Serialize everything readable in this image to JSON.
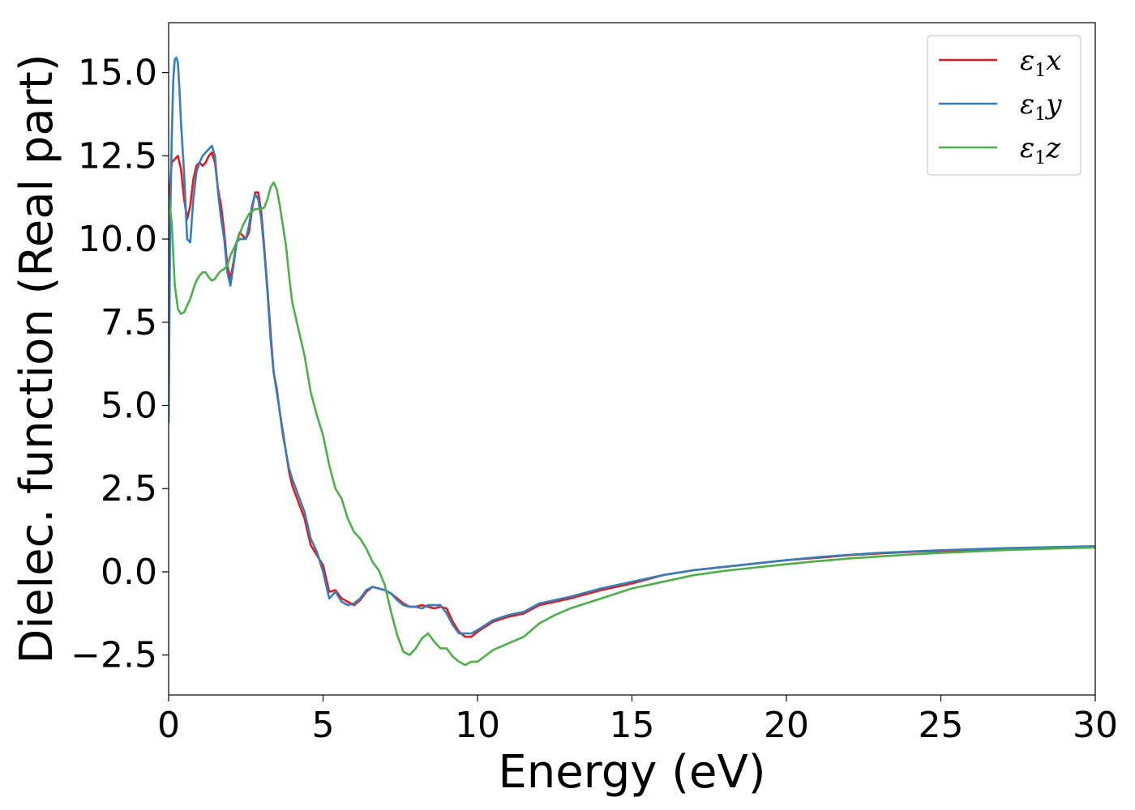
{
  "chart_data": {
    "type": "line",
    "xlabel": "Energy (eV)",
    "ylabel": "Dielec. function (Real part)",
    "xlim": [
      0,
      30
    ],
    "ylim": [
      -3.7,
      16.5
    ],
    "xticks": [
      0,
      5,
      10,
      15,
      20,
      25,
      30
    ],
    "xtick_labels": [
      "0",
      "5",
      "10",
      "15",
      "20",
      "25",
      "30"
    ],
    "yticks": [
      -2.5,
      0.0,
      2.5,
      5.0,
      7.5,
      10.0,
      12.5,
      15.0
    ],
    "ytick_labels": [
      "−2.5",
      "0.0",
      "2.5",
      "5.0",
      "7.5",
      "10.0",
      "12.5",
      "15.0"
    ],
    "grid": false,
    "legend_position": "top-right",
    "series": [
      {
        "name": "ε1x",
        "legend_main": "ε",
        "legend_sub": "1",
        "legend_var": "x",
        "color": "#e41a1c",
        "x": [
          0,
          0.1,
          0.2,
          0.3,
          0.4,
          0.5,
          0.6,
          0.7,
          0.8,
          0.9,
          1.0,
          1.1,
          1.2,
          1.3,
          1.4,
          1.5,
          1.6,
          1.7,
          1.8,
          1.9,
          2.0,
          2.1,
          2.2,
          2.3,
          2.4,
          2.5,
          2.6,
          2.7,
          2.8,
          2.9,
          3.0,
          3.1,
          3.2,
          3.3,
          3.4,
          3.5,
          3.6,
          3.7,
          3.8,
          3.9,
          4.0,
          4.2,
          4.4,
          4.6,
          4.8,
          5.0,
          5.2,
          5.4,
          5.6,
          5.8,
          6.0,
          6.2,
          6.4,
          6.6,
          6.8,
          7.0,
          7.2,
          7.4,
          7.6,
          7.8,
          8.0,
          8.2,
          8.4,
          8.6,
          8.8,
          9.0,
          9.2,
          9.4,
          9.6,
          9.8,
          10.0,
          10.5,
          11.0,
          11.5,
          12.0,
          12.5,
          13.0,
          14.0,
          15.0,
          16.0,
          17.0,
          18.0,
          19.0,
          20.0,
          21.0,
          22.0,
          23.0,
          24.0,
          25.0,
          26.0,
          27.0,
          28.0,
          29.0,
          30.0
        ],
        "y": [
          11.0,
          12.3,
          12.4,
          12.5,
          12.1,
          11.2,
          10.6,
          11.0,
          11.8,
          12.2,
          12.3,
          12.2,
          12.3,
          12.5,
          12.6,
          12.3,
          11.5,
          11.0,
          10.2,
          9.2,
          8.8,
          9.3,
          9.9,
          10.2,
          10.1,
          10.0,
          10.2,
          10.9,
          11.4,
          11.4,
          10.8,
          9.7,
          8.5,
          7.2,
          6.0,
          5.5,
          4.8,
          4.2,
          3.6,
          3.0,
          2.6,
          2.1,
          1.6,
          0.8,
          0.5,
          0.2,
          -0.6,
          -0.55,
          -0.8,
          -0.9,
          -1.0,
          -0.85,
          -0.6,
          -0.45,
          -0.5,
          -0.55,
          -0.65,
          -0.8,
          -0.95,
          -1.05,
          -1.05,
          -1.0,
          -1.05,
          -1.1,
          -1.05,
          -1.1,
          -1.5,
          -1.8,
          -1.95,
          -1.95,
          -1.8,
          -1.5,
          -1.35,
          -1.25,
          -1.0,
          -0.9,
          -0.8,
          -0.55,
          -0.35,
          -0.1,
          0.05,
          0.15,
          0.25,
          0.35,
          0.42,
          0.5,
          0.55,
          0.6,
          0.63,
          0.66,
          0.69,
          0.71,
          0.73,
          0.75
        ]
      },
      {
        "name": "ε1y",
        "legend_main": "ε",
        "legend_sub": "1",
        "legend_var": "y",
        "color": "#377eb8",
        "x": [
          0,
          0.05,
          0.1,
          0.15,
          0.2,
          0.25,
          0.3,
          0.35,
          0.4,
          0.5,
          0.6,
          0.7,
          0.8,
          0.9,
          1.0,
          1.1,
          1.2,
          1.3,
          1.4,
          1.5,
          1.6,
          1.7,
          1.8,
          1.9,
          2.0,
          2.1,
          2.2,
          2.3,
          2.4,
          2.5,
          2.6,
          2.7,
          2.8,
          2.9,
          3.0,
          3.1,
          3.2,
          3.3,
          3.4,
          3.5,
          3.6,
          3.7,
          3.8,
          3.9,
          4.0,
          4.2,
          4.4,
          4.6,
          4.8,
          5.0,
          5.2,
          5.4,
          5.6,
          5.8,
          6.0,
          6.2,
          6.4,
          6.6,
          6.8,
          7.0,
          7.2,
          7.4,
          7.6,
          7.8,
          8.0,
          8.2,
          8.4,
          8.6,
          8.8,
          9.0,
          9.2,
          9.4,
          9.6,
          9.8,
          10.0,
          10.5,
          11.0,
          11.5,
          12.0,
          12.5,
          13.0,
          14.0,
          15.0,
          16.0,
          17.0,
          18.0,
          19.0,
          20.0,
          21.0,
          22.0,
          23.0,
          24.0,
          25.0,
          26.0,
          27.0,
          28.0,
          29.0,
          30.0
        ],
        "y": [
          4.5,
          10.5,
          13.0,
          14.8,
          15.4,
          15.45,
          15.3,
          14.5,
          13.5,
          12.0,
          10.0,
          9.9,
          11.2,
          12.0,
          12.3,
          12.5,
          12.6,
          12.7,
          12.8,
          12.5,
          11.4,
          10.6,
          10.0,
          9.0,
          8.6,
          9.2,
          9.9,
          10.0,
          10.0,
          10.0,
          10.4,
          11.0,
          11.35,
          11.2,
          10.6,
          9.6,
          8.4,
          7.0,
          6.0,
          5.4,
          4.8,
          4.1,
          3.6,
          3.1,
          2.8,
          2.3,
          1.8,
          1.0,
          0.6,
          0.0,
          -0.8,
          -0.6,
          -0.9,
          -1.0,
          -0.95,
          -0.8,
          -0.55,
          -0.45,
          -0.5,
          -0.55,
          -0.65,
          -0.85,
          -1.0,
          -1.05,
          -1.05,
          -1.1,
          -1.0,
          -1.0,
          -1.0,
          -1.25,
          -1.6,
          -1.85,
          -1.85,
          -1.85,
          -1.75,
          -1.45,
          -1.3,
          -1.2,
          -0.95,
          -0.85,
          -0.75,
          -0.5,
          -0.3,
          -0.1,
          0.05,
          0.15,
          0.25,
          0.35,
          0.44,
          0.51,
          0.57,
          0.61,
          0.65,
          0.68,
          0.71,
          0.73,
          0.75,
          0.77
        ]
      },
      {
        "name": "ε1z",
        "legend_main": "ε",
        "legend_sub": "1",
        "legend_var": "z",
        "color": "#4daf4a",
        "x": [
          0,
          0.1,
          0.2,
          0.3,
          0.4,
          0.5,
          0.6,
          0.7,
          0.8,
          0.9,
          1.0,
          1.1,
          1.2,
          1.3,
          1.4,
          1.5,
          1.6,
          1.7,
          1.8,
          1.9,
          2.0,
          2.2,
          2.4,
          2.6,
          2.8,
          3.0,
          3.1,
          3.2,
          3.3,
          3.4,
          3.5,
          3.6,
          3.7,
          3.8,
          3.9,
          4.0,
          4.2,
          4.4,
          4.6,
          4.8,
          5.0,
          5.2,
          5.4,
          5.6,
          5.8,
          6.0,
          6.2,
          6.4,
          6.6,
          6.8,
          7.0,
          7.2,
          7.4,
          7.6,
          7.8,
          8.0,
          8.2,
          8.4,
          8.6,
          8.8,
          9.0,
          9.2,
          9.4,
          9.6,
          9.8,
          10.0,
          10.5,
          11.0,
          11.5,
          12.0,
          12.5,
          13.0,
          14.0,
          15.0,
          16.0,
          17.0,
          18.0,
          19.0,
          20.0,
          21.0,
          22.0,
          23.0,
          24.0,
          25.0,
          26.0,
          27.0,
          28.0,
          29.0,
          30.0
        ],
        "y": [
          11.3,
          10.5,
          8.6,
          7.9,
          7.75,
          7.8,
          8.0,
          8.2,
          8.5,
          8.75,
          8.9,
          9.0,
          9.0,
          8.85,
          8.75,
          8.8,
          8.95,
          9.05,
          9.1,
          9.2,
          9.5,
          9.9,
          10.4,
          10.75,
          10.9,
          10.9,
          10.95,
          11.2,
          11.55,
          11.7,
          11.5,
          11.0,
          10.4,
          9.8,
          8.9,
          8.1,
          7.3,
          6.5,
          5.4,
          4.7,
          4.1,
          3.2,
          2.5,
          2.2,
          1.6,
          1.2,
          1.0,
          0.7,
          0.3,
          0.05,
          -0.4,
          -1.2,
          -1.9,
          -2.4,
          -2.5,
          -2.3,
          -2.0,
          -1.85,
          -2.1,
          -2.3,
          -2.3,
          -2.55,
          -2.7,
          -2.8,
          -2.7,
          -2.7,
          -2.35,
          -2.15,
          -1.95,
          -1.55,
          -1.3,
          -1.1,
          -0.8,
          -0.5,
          -0.3,
          -0.1,
          0.03,
          0.13,
          0.23,
          0.32,
          0.4,
          0.46,
          0.52,
          0.57,
          0.61,
          0.65,
          0.68,
          0.71,
          0.73
        ]
      }
    ]
  }
}
